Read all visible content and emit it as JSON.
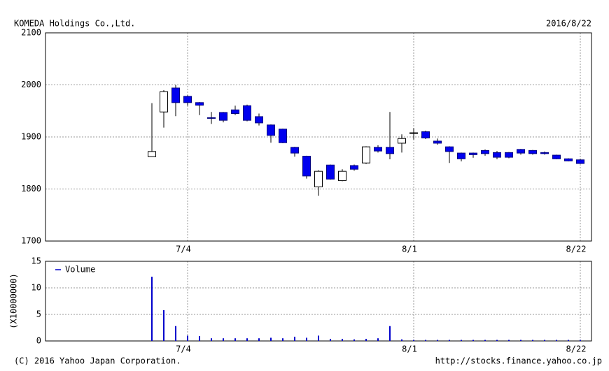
{
  "chart_data": [
    {
      "type": "candlestick",
      "title": "KOMEDA Holdings Co.,Ltd.",
      "date": "2016/8/22",
      "categories": [
        null,
        null,
        null,
        "7/4",
        null,
        null,
        null,
        null,
        null,
        null,
        null,
        null,
        null,
        null,
        null,
        null,
        null,
        null,
        null,
        null,
        null,
        null,
        "8/1",
        null,
        null,
        null,
        null,
        null,
        null,
        null,
        null,
        null,
        null,
        null,
        null,
        null,
        "8/22"
      ],
      "open": [
        1862,
        1948,
        1994,
        1978,
        1966,
        1937,
        1947,
        1952,
        1960,
        1939,
        1923,
        1915,
        1880,
        1863,
        1804,
        1846,
        1816,
        1845,
        1850,
        1880,
        1880,
        1888,
        1907,
        1910,
        1892,
        1881,
        1869,
        1869,
        1874,
        1870,
        1870,
        1876,
        1874,
        1870,
        1865,
        1858,
        1856
      ],
      "high": [
        1965,
        1990,
        2000,
        1980,
        1967,
        1948,
        1948,
        1960,
        1962,
        1945,
        1924,
        1916,
        1881,
        1864,
        1836,
        1847,
        1838,
        1847,
        1882,
        1884,
        1948,
        1905,
        1917,
        1912,
        1897,
        1882,
        1870,
        1870,
        1876,
        1873,
        1871,
        1877,
        1875,
        1872,
        1866,
        1859,
        1858
      ],
      "low": [
        1862,
        1918,
        1940,
        1960,
        1942,
        1925,
        1928,
        1942,
        1930,
        1922,
        1889,
        1888,
        1862,
        1820,
        1787,
        1818,
        1815,
        1835,
        1848,
        1870,
        1857,
        1870,
        1895,
        1896,
        1885,
        1850,
        1853,
        1860,
        1864,
        1857,
        1859,
        1866,
        1866,
        1866,
        1857,
        1853,
        1848
      ],
      "close": [
        1872,
        1987,
        1966,
        1966,
        1961,
        1936,
        1932,
        1945,
        1932,
        1927,
        1903,
        1889,
        1869,
        1825,
        1834,
        1819,
        1834,
        1838,
        1881,
        1873,
        1868,
        1897,
        1908,
        1898,
        1888,
        1872,
        1858,
        1866,
        1868,
        1861,
        1861,
        1869,
        1868,
        1868,
        1858,
        1854,
        1849
      ],
      "up_color": "#ffffff",
      "down_color": "#0000ee",
      "ylim": [
        1700,
        2100
      ],
      "yticks": [
        1700,
        1800,
        1900,
        2000,
        2100
      ],
      "grid": true
    },
    {
      "type": "bar",
      "ylabel": "(X10000000)",
      "categories": [
        null,
        null,
        null,
        "7/4",
        null,
        null,
        null,
        null,
        null,
        null,
        null,
        null,
        null,
        null,
        null,
        null,
        null,
        null,
        null,
        null,
        null,
        null,
        "8/1",
        null,
        null,
        null,
        null,
        null,
        null,
        null,
        null,
        null,
        null,
        null,
        null,
        null,
        "8/22"
      ],
      "series": [
        {
          "name": "Volume",
          "color": "#0000cc",
          "values": [
            12.1,
            5.8,
            2.8,
            1.0,
            0.9,
            0.5,
            0.5,
            0.5,
            0.5,
            0.5,
            0.6,
            0.5,
            0.8,
            0.6,
            1.0,
            0.4,
            0.4,
            0.3,
            0.4,
            0.5,
            2.8,
            0.3,
            0.2,
            0.2,
            0.2,
            0.2,
            0.2,
            0.2,
            0.2,
            0.2,
            0.2,
            0.2,
            0.2,
            0.2,
            0.2,
            0.2,
            0.2
          ]
        }
      ],
      "ylim": [
        0,
        15
      ],
      "yticks": [
        0,
        5,
        10,
        15
      ],
      "grid": true
    }
  ],
  "footer": {
    "copyright": "(C) 2016 Yahoo Japan Corporation.",
    "url": "http://stocks.finance.yahoo.co.jp"
  }
}
